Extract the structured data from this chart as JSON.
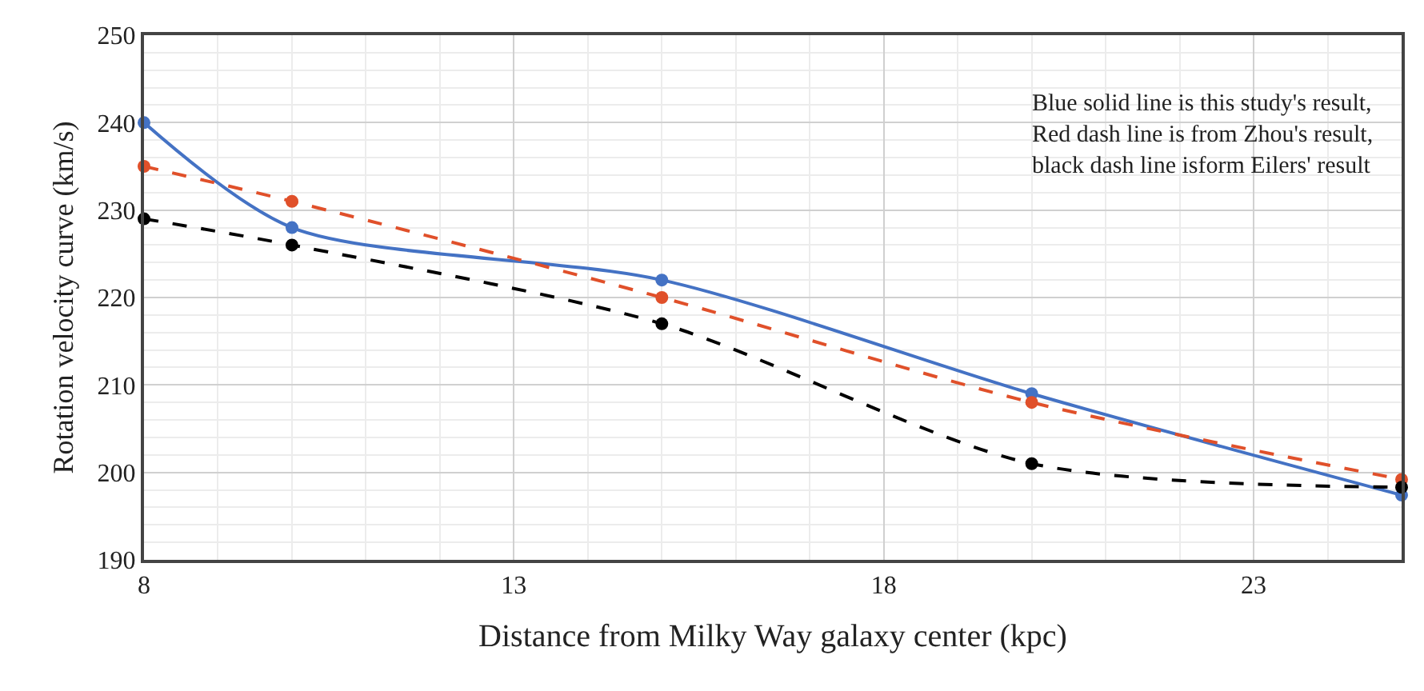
{
  "chart_data": {
    "type": "line",
    "xlabel": "Distance from Milky Way galaxy center (kpc)",
    "ylabel": "Rotation velocity curve (km/s)",
    "x": [
      8,
      10,
      15,
      20,
      25
    ],
    "series": [
      {
        "color": "#4472c4",
        "line_style": "solid",
        "values": [
          240,
          228,
          222,
          209,
          197.4
        ]
      },
      {
        "color": "#e0502a",
        "line_style": "dashed",
        "values": [
          235,
          231,
          220,
          208,
          199.2
        ]
      },
      {
        "color": "#000000",
        "line_style": "dashed",
        "values": [
          229,
          226,
          217,
          201,
          198.3
        ]
      }
    ],
    "marker": "circle",
    "xlim": [
      8,
      25
    ],
    "xticks": [
      8,
      13,
      18,
      23
    ],
    "ylim": [
      190,
      250
    ],
    "yticks": [
      190,
      200,
      210,
      220,
      230,
      240,
      250
    ],
    "grid": true,
    "annotations": [
      "Blue solid line is this study's result,\nRed dash line is from Zhou's result,\nblack dash line isform Eilers' result"
    ]
  }
}
